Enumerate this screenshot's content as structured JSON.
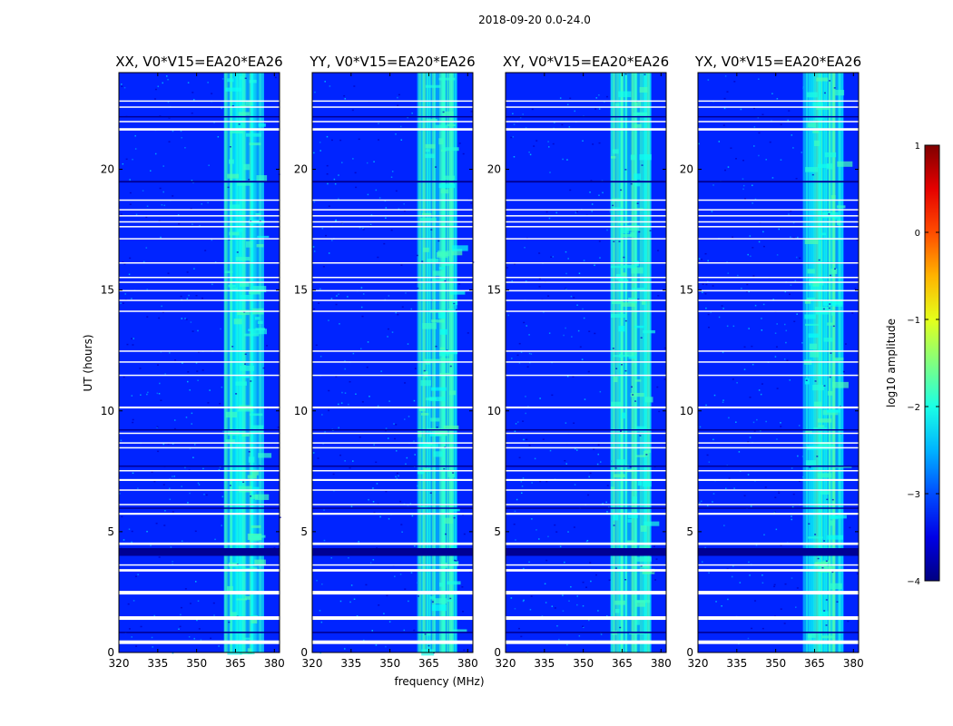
{
  "chart_data": {
    "type": "heatmap",
    "title": "2018-09-20 0.0-24.0",
    "xlabel": "frequency (MHz)",
    "ylabel": "UT (hours)",
    "xlim": [
      320,
      382
    ],
    "ylim": [
      0,
      24
    ],
    "xticks": [
      "320",
      "335",
      "350",
      "365",
      "380"
    ],
    "yticks": [
      "0",
      "5",
      "10",
      "15",
      "20"
    ],
    "panels": [
      {
        "title": "XX, V0*V15=EA20*EA26"
      },
      {
        "title": "YY, V0*V15=EA20*EA26"
      },
      {
        "title": "XY, V0*V15=EA20*EA26"
      },
      {
        "title": "YX, V0*V15=EA20*EA26"
      }
    ],
    "colorbar": {
      "label": "log10 amplitude",
      "range": [
        -4,
        1
      ],
      "ticks": [
        "1",
        "0",
        "−1",
        "−2",
        "−3",
        "−4"
      ],
      "colormap": "jet"
    },
    "background_level": -3.2,
    "rfi_band_mhz": [
      360.5,
      376
    ],
    "rfi_band_level": -2.1,
    "flagged_white_ut": [
      [
        0.35,
        0.5
      ],
      [
        1.35,
        1.5
      ],
      [
        2.4,
        2.55
      ],
      [
        3.35,
        3.45
      ],
      [
        3.6,
        3.65
      ],
      [
        4.45,
        4.55
      ],
      [
        5.7,
        5.78
      ],
      [
        6.1,
        6.15
      ],
      [
        6.7,
        6.75
      ],
      [
        7.1,
        7.18
      ],
      [
        7.5,
        7.55
      ],
      [
        8.45,
        8.5
      ],
      [
        8.65,
        8.7
      ],
      [
        9.05,
        9.1
      ],
      [
        10.1,
        10.18
      ],
      [
        11.45,
        11.5
      ],
      [
        12.0,
        12.05
      ],
      [
        12.45,
        12.5
      ],
      [
        14.1,
        14.15
      ],
      [
        14.55,
        14.6
      ],
      [
        14.95,
        15.0
      ],
      [
        15.3,
        15.35
      ],
      [
        15.5,
        15.55
      ],
      [
        16.1,
        16.15
      ],
      [
        17.1,
        17.15
      ],
      [
        17.6,
        17.65
      ],
      [
        17.8,
        17.85
      ],
      [
        18.05,
        18.1
      ],
      [
        18.3,
        18.35
      ],
      [
        18.7,
        18.75
      ],
      [
        21.6,
        21.7
      ],
      [
        21.95,
        22.0
      ],
      [
        22.55,
        22.6
      ],
      [
        22.8,
        22.85
      ]
    ],
    "flagged_dark_ut": [
      [
        0.8,
        0.86
      ],
      [
        4.0,
        4.32
      ],
      [
        5.95,
        6.0
      ],
      [
        7.7,
        7.74
      ],
      [
        9.2,
        9.24
      ],
      [
        19.45,
        19.52
      ],
      [
        22.15,
        22.2
      ]
    ]
  }
}
